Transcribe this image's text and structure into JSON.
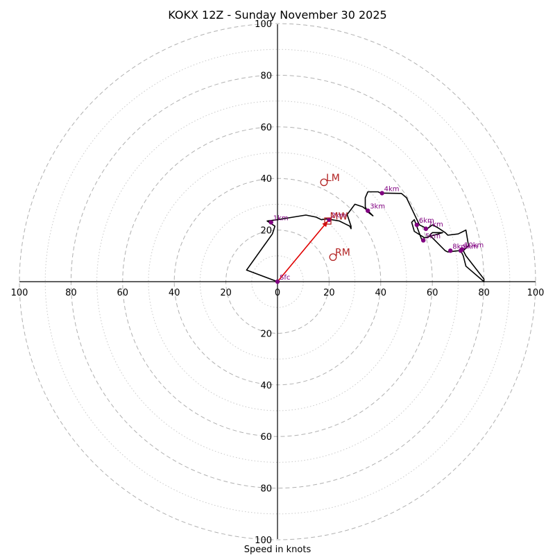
{
  "chart_data": {
    "type": "hodograph",
    "title": "KOKX 12Z - Sunday November 30 2025",
    "xlabel": "Speed in knots",
    "ring_max": 100,
    "major_rings": [
      20,
      40,
      60,
      80,
      100
    ],
    "minor_rings": [
      10,
      30,
      50,
      70,
      90
    ],
    "x_ticks": [
      {
        "value": -100,
        "label": "100"
      },
      {
        "value": -80,
        "label": "80"
      },
      {
        "value": -60,
        "label": "60"
      },
      {
        "value": -40,
        "label": "40"
      },
      {
        "value": -20,
        "label": "20"
      },
      {
        "value": 0,
        "label": "0"
      },
      {
        "value": 20,
        "label": "20"
      },
      {
        "value": 40,
        "label": "40"
      },
      {
        "value": 60,
        "label": "60"
      },
      {
        "value": 80,
        "label": "80"
      },
      {
        "value": 100,
        "label": "100"
      }
    ],
    "y_ticks": [
      {
        "value": 100,
        "label": "100"
      },
      {
        "value": 80,
        "label": "80"
      },
      {
        "value": 60,
        "label": "60"
      },
      {
        "value": 40,
        "label": "40"
      },
      {
        "value": 20,
        "label": "20"
      },
      {
        "value": -20,
        "label": "20"
      },
      {
        "value": -40,
        "label": "40"
      },
      {
        "value": -60,
        "label": "60"
      },
      {
        "value": -80,
        "label": "80"
      },
      {
        "value": -100,
        "label": "100"
      }
    ],
    "hodograph_path": [
      {
        "u": 0,
        "v": 0
      },
      {
        "u": -12,
        "v": 4.5
      },
      {
        "u": -2,
        "v": 18.5
      },
      {
        "u": -1,
        "v": 21.5
      },
      {
        "u": -4,
        "v": 23.5
      },
      {
        "u": 0,
        "v": 24
      },
      {
        "u": 6,
        "v": 25
      },
      {
        "u": 11,
        "v": 25.8
      },
      {
        "u": 15,
        "v": 25
      },
      {
        "u": 17,
        "v": 24
      },
      {
        "u": 19,
        "v": 24.3
      },
      {
        "u": 21,
        "v": 24
      },
      {
        "u": 24,
        "v": 23.5
      },
      {
        "u": 26,
        "v": 22.5
      },
      {
        "u": 28,
        "v": 21.5
      },
      {
        "u": 28.5,
        "v": 20.5
      },
      {
        "u": 28.5,
        "v": 21.5
      },
      {
        "u": 27,
        "v": 26
      },
      {
        "u": 30,
        "v": 30
      },
      {
        "u": 33,
        "v": 29
      },
      {
        "u": 35,
        "v": 27.5
      },
      {
        "u": 37,
        "v": 25.5
      },
      {
        "u": 35,
        "v": 27
      },
      {
        "u": 34,
        "v": 29
      },
      {
        "u": 34,
        "v": 32.5
      },
      {
        "u": 35,
        "v": 34.8
      },
      {
        "u": 39,
        "v": 34.8
      },
      {
        "u": 40,
        "v": 34.3
      },
      {
        "u": 42,
        "v": 34.3
      },
      {
        "u": 48,
        "v": 34.2
      },
      {
        "u": 50,
        "v": 32.5
      },
      {
        "u": 55,
        "v": 22
      },
      {
        "u": 58,
        "v": 20.5
      },
      {
        "u": 60,
        "v": 22
      },
      {
        "u": 62,
        "v": 21
      },
      {
        "u": 65,
        "v": 19
      },
      {
        "u": 66,
        "v": 18
      },
      {
        "u": 70,
        "v": 18.5
      },
      {
        "u": 73,
        "v": 20
      },
      {
        "u": 74,
        "v": 14
      },
      {
        "u": 72,
        "v": 12
      },
      {
        "u": 73,
        "v": 10
      },
      {
        "u": 80,
        "v": 1
      },
      {
        "u": 80,
        "v": 0
      },
      {
        "u": 73,
        "v": 6
      },
      {
        "u": 72,
        "v": 10
      },
      {
        "u": 71,
        "v": 12
      },
      {
        "u": 70,
        "v": 12
      },
      {
        "u": 66,
        "v": 11.5
      },
      {
        "u": 65,
        "v": 12
      },
      {
        "u": 62,
        "v": 15
      },
      {
        "u": 59,
        "v": 18
      },
      {
        "u": 60,
        "v": 19
      },
      {
        "u": 64,
        "v": 19
      },
      {
        "u": 57,
        "v": 17
      },
      {
        "u": 53,
        "v": 19.5
      },
      {
        "u": 52,
        "v": 23
      },
      {
        "u": 53,
        "v": 24
      },
      {
        "u": 56,
        "v": 16
      }
    ],
    "height_markers": [
      {
        "label": "Sfc",
        "u": 0,
        "v": 0
      },
      {
        "label": "1km",
        "u": -2.5,
        "v": 23
      },
      {
        "label": "2km",
        "u": 20,
        "v": 24
      },
      {
        "label": "3km",
        "u": 35,
        "v": 27.5
      },
      {
        "label": "4km",
        "u": 40.5,
        "v": 34.3
      },
      {
        "label": "5km",
        "u": 56.5,
        "v": 16
      },
      {
        "label": "6km",
        "u": 54,
        "v": 22
      },
      {
        "label": "7km",
        "u": 57.5,
        "v": 20.5
      },
      {
        "label": "8km",
        "u": 67,
        "v": 12
      },
      {
        "label": "9km",
        "u": 71,
        "v": 12
      },
      {
        "label": "10km",
        "u": 71.5,
        "v": 12.5
      }
    ],
    "storm_motions": [
      {
        "label": "LM",
        "u": 18,
        "v": 38.5,
        "marker": "circle"
      },
      {
        "label": "MW",
        "u": 19.5,
        "v": 23.5,
        "marker": "square"
      },
      {
        "label": "RM",
        "u": 21.5,
        "v": 9.5,
        "marker": "circle"
      }
    ],
    "shear_vector": {
      "from_u": 0,
      "from_v": 0,
      "to_u": 19.5,
      "to_v": 23.5
    },
    "colors": {
      "path": "#000000",
      "markers": "#800080",
      "storm": "#b22222",
      "shear": "#e00000"
    }
  }
}
